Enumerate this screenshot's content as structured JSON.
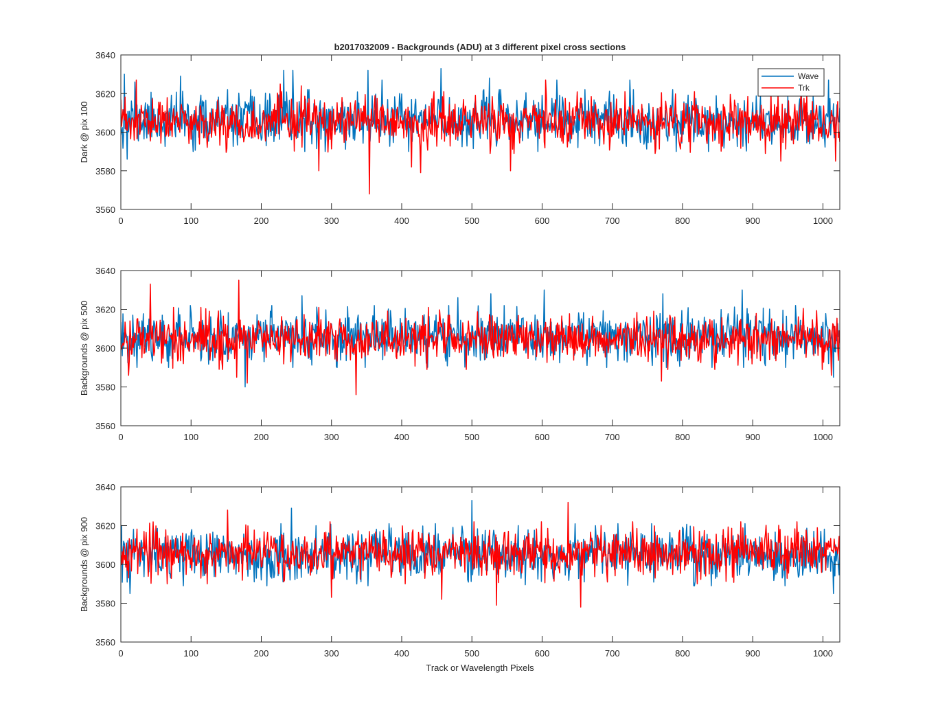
{
  "figure": {
    "title": "b2017032009 - Backgrounds (ADU) at 3 different pixel cross sections",
    "xlabel": "Track or Wavelength Pixels"
  },
  "colors": {
    "wave": "#0072BD",
    "trk": "#FF0000",
    "axes": "#262626"
  },
  "chart_data": [
    {
      "type": "line",
      "ylabel": "Dark @ pix 100",
      "xlim": [
        0,
        1024
      ],
      "ylim": [
        3560,
        3640
      ],
      "xticks": [
        0,
        100,
        200,
        300,
        400,
        500,
        600,
        700,
        800,
        900,
        1000
      ],
      "yticks": [
        3560,
        3580,
        3600,
        3620,
        3640
      ],
      "legend": {
        "location": "top-right",
        "entries": [
          "Wave",
          "Trk"
        ]
      },
      "series": [
        {
          "name": "Wave",
          "color": "#0072BD",
          "x_start": 0,
          "x_end": 1024,
          "mean": 3606,
          "std": 6.5,
          "seed": 11,
          "spikes": [
            [
              5,
              3630
            ],
            [
              9,
              3586
            ],
            [
              20,
              3626
            ],
            [
              85,
              3629
            ],
            [
              232,
              3632
            ],
            [
              245,
              3632
            ],
            [
              352,
              3632
            ],
            [
              372,
              3627
            ],
            [
              456,
              3633
            ],
            [
              525,
              3628
            ],
            [
              621,
              3627
            ],
            [
              725,
              3627
            ],
            [
              1008,
              3627
            ]
          ],
          "grid_gridlines": false
        },
        {
          "name": "Trk",
          "color": "#FF0000",
          "x_start": 0,
          "x_end": 1024,
          "mean": 3605,
          "std": 6.0,
          "seed": 23,
          "spikes": [
            [
              22,
              3627
            ],
            [
              227,
              3625
            ],
            [
              257,
              3624
            ],
            [
              282,
              3580
            ],
            [
              354,
              3568
            ],
            [
              414,
              3582
            ],
            [
              427,
              3579
            ],
            [
              555,
              3580
            ],
            [
              605,
              3627
            ],
            [
              940,
              3585
            ],
            [
              1018,
              3585
            ]
          ]
        }
      ]
    },
    {
      "type": "line",
      "ylabel": "Backgrounds @ pix 500",
      "xlim": [
        0,
        1024
      ],
      "ylim": [
        3560,
        3640
      ],
      "xticks": [
        0,
        100,
        200,
        300,
        400,
        500,
        600,
        700,
        800,
        900,
        1000
      ],
      "yticks": [
        3560,
        3580,
        3600,
        3620,
        3640
      ],
      "series": [
        {
          "name": "Wave",
          "color": "#0072BD",
          "x_start": 0,
          "x_end": 1024,
          "mean": 3606,
          "std": 6.5,
          "seed": 37,
          "spikes": [
            [
              177,
              3580
            ],
            [
              258,
              3627
            ],
            [
              480,
              3626
            ],
            [
              527,
              3628
            ],
            [
              603,
              3630
            ],
            [
              772,
              3628
            ],
            [
              885,
              3630
            ],
            [
              1015,
              3585
            ]
          ]
        },
        {
          "name": "Trk",
          "color": "#FF0000",
          "x_start": 0,
          "x_end": 1024,
          "mean": 3605,
          "std": 6.0,
          "seed": 41,
          "spikes": [
            [
              11,
              3586
            ],
            [
              42,
              3633
            ],
            [
              165,
              3585
            ],
            [
              168,
              3635
            ],
            [
              180,
              3582
            ],
            [
              335,
              3576
            ],
            [
              770,
              3583
            ],
            [
              1012,
              3586
            ]
          ]
        }
      ]
    },
    {
      "type": "line",
      "ylabel": "Backgrounds @ pix 900",
      "xlim": [
        0,
        1024
      ],
      "ylim": [
        3560,
        3640
      ],
      "xticks": [
        0,
        100,
        200,
        300,
        400,
        500,
        600,
        700,
        800,
        900,
        1000
      ],
      "yticks": [
        3560,
        3580,
        3600,
        3620,
        3640
      ],
      "series": [
        {
          "name": "Wave",
          "color": "#0072BD",
          "x_start": 0,
          "x_end": 1024,
          "mean": 3605,
          "std": 6.5,
          "seed": 53,
          "spikes": [
            [
              13,
              3585
            ],
            [
              243,
              3629
            ],
            [
              500,
              3633
            ],
            [
              1015,
              3585
            ]
          ]
        },
        {
          "name": "Trk",
          "color": "#FF0000",
          "x_start": 0,
          "x_end": 1024,
          "mean": 3606,
          "std": 6.0,
          "seed": 67,
          "spikes": [
            [
              152,
              3628
            ],
            [
              300,
              3583
            ],
            [
              457,
              3582
            ],
            [
              535,
              3579
            ],
            [
              637,
              3632
            ],
            [
              655,
              3578
            ]
          ]
        }
      ]
    }
  ]
}
